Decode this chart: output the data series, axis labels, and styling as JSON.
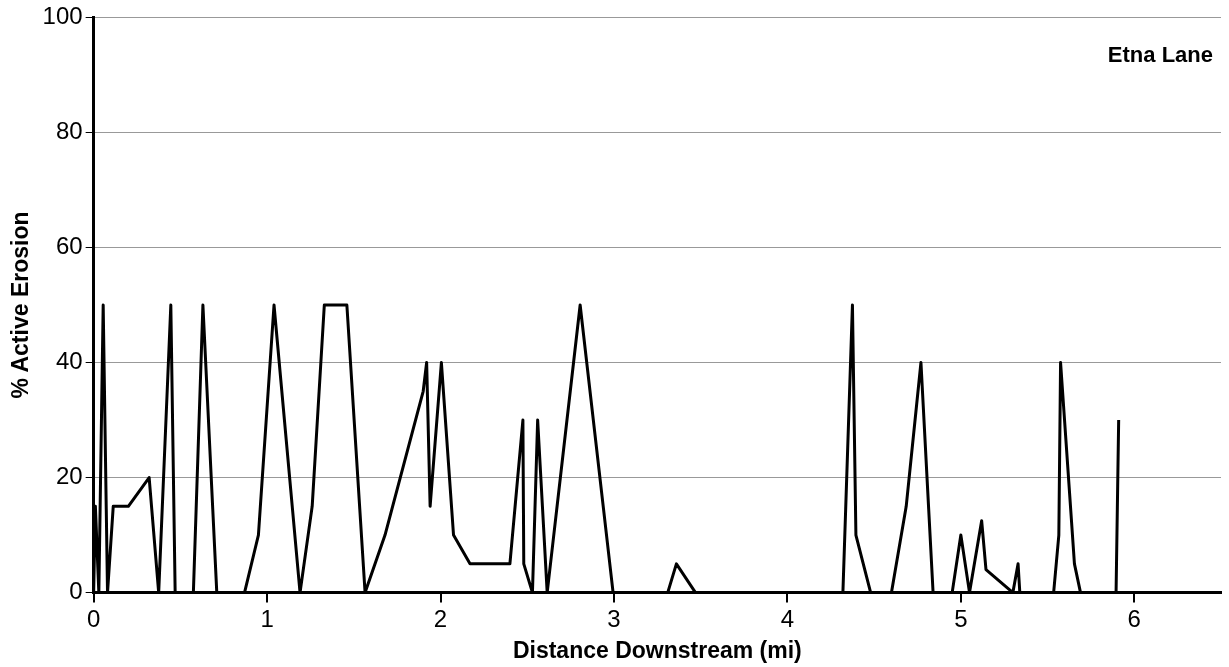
{
  "chart_data": {
    "type": "line",
    "xlabel": "Distance Downstream (mi)",
    "ylabel": "% Active Erosion",
    "annotations": [
      "Etna Lane"
    ],
    "xlim": [
      0,
      6.5
    ],
    "xticks": [
      0,
      1,
      2,
      3,
      4,
      5,
      6
    ],
    "ylim": [
      0,
      100
    ],
    "yticks": [
      0,
      20,
      40,
      60,
      80,
      100
    ],
    "grid": "y",
    "legend": false,
    "marker": "none",
    "line_style": "solid",
    "series": [
      {
        "color": "#000000",
        "x": [
          0,
          0.01,
          0.03,
          0.055,
          0.08,
          0.113,
          0.2,
          0.32,
          0.375,
          0.445,
          0.47,
          0.575,
          0.63,
          0.71,
          0.87,
          0.95,
          1.04,
          1.19,
          1.26,
          1.33,
          1.46,
          1.565,
          1.68,
          1.9,
          1.92,
          1.94,
          2.005,
          2.075,
          2.17,
          2.4,
          2.475,
          2.48,
          2.53,
          2.56,
          2.615,
          2.805,
          2.995,
          3.31,
          3.36,
          3.47,
          4.32,
          4.375,
          4.395,
          4.48,
          4.6,
          4.685,
          4.77,
          4.84,
          4.95,
          5.0,
          5.05,
          5.12,
          5.145,
          5.3,
          5.33,
          5.34,
          5.535,
          5.565,
          5.575,
          5.655,
          5.69,
          5.895,
          5.91
        ],
        "values": [
          0,
          15,
          0,
          50,
          0,
          15,
          15,
          20,
          0,
          50,
          0,
          0,
          50,
          0,
          0,
          10,
          50,
          0,
          15,
          50,
          50,
          0,
          10,
          35,
          40,
          15,
          40,
          10,
          5,
          5,
          30,
          5,
          0,
          30,
          0,
          50,
          0,
          0,
          5,
          0,
          0,
          50,
          10,
          0,
          0,
          15,
          40,
          0,
          0,
          10,
          0,
          12.5,
          4,
          0,
          5,
          0,
          0,
          10,
          40,
          5,
          0,
          0,
          30
        ]
      }
    ]
  }
}
